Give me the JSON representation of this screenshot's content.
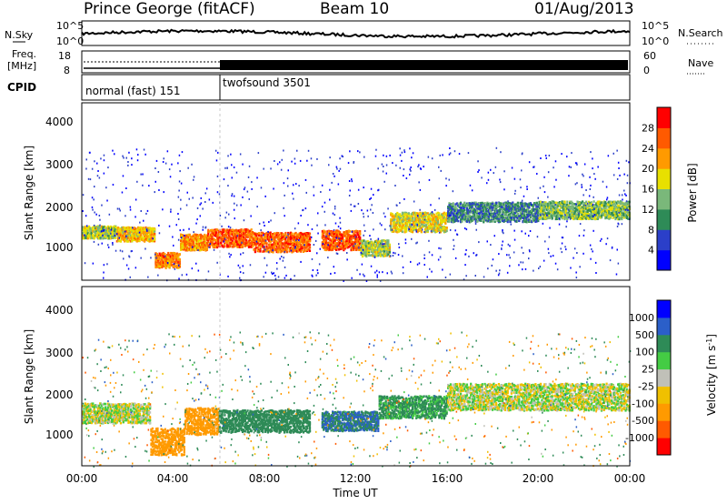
{
  "header": {
    "station": "Prince George (fitACF)",
    "beam": "Beam 10",
    "date": "01/Aug/2013"
  },
  "noise_panel": {
    "left_label": "N.Sky",
    "right_label": "N.Search",
    "left_ticks": [
      "10^5",
      "10^0"
    ],
    "right_ticks": [
      "10^5",
      "10^0"
    ]
  },
  "freq_panel": {
    "left_label_1": "Freq.",
    "left_label_2": "[MHz]",
    "left_ticks": [
      "18",
      "8"
    ],
    "right_label": "Nave",
    "right_ticks": [
      "60",
      "0"
    ]
  },
  "cpid_panel": {
    "label": "CPID",
    "modes": [
      {
        "name": "normal (fast) 151",
        "start_h": 0,
        "end_h": 6
      },
      {
        "name": "twofsound 3501",
        "start_h": 6,
        "end_h": 24
      }
    ]
  },
  "time_axis": {
    "label": "Time UT",
    "ticks": [
      "00:00",
      "04:00",
      "08:00",
      "12:00",
      "16:00",
      "20:00",
      "00:00"
    ]
  },
  "chart_data": [
    {
      "type": "heatmap",
      "title": "",
      "ylabel": "Slant Range [km]",
      "xlabel": "",
      "xlim_hours": [
        0,
        24
      ],
      "ylim": [
        180,
        4600
      ],
      "yticks": [
        "4000",
        "3000",
        "2000",
        "1000"
      ],
      "colorbar": {
        "label": "Power [dB]",
        "ticks": [
          "28",
          "24",
          "20",
          "16",
          "12",
          "8",
          "4"
        ],
        "colors": [
          "#0000ff",
          "#2b3fc9",
          "#2e8b57",
          "#7ab87a",
          "#e8e000",
          "#ff9a00",
          "#ff5a00",
          "#ff0000"
        ]
      },
      "bands": [
        {
          "h0": 0.0,
          "h1": 1.5,
          "r": 1400,
          "w": 140,
          "v": 18
        },
        {
          "h0": 1.5,
          "h1": 3.2,
          "r": 1350,
          "w": 160,
          "v": 22
        },
        {
          "h0": 3.2,
          "h1": 4.3,
          "r": 700,
          "w": 170,
          "v": 26
        },
        {
          "h0": 4.3,
          "h1": 5.5,
          "r": 1150,
          "w": 180,
          "v": 25
        },
        {
          "h0": 5.5,
          "h1": 7.5,
          "r": 1250,
          "w": 200,
          "v": 28
        },
        {
          "h0": 7.5,
          "h1": 10.0,
          "r": 1150,
          "w": 220,
          "v": 27
        },
        {
          "h0": 10.5,
          "h1": 12.2,
          "r": 1200,
          "w": 220,
          "v": 28
        },
        {
          "h0": 12.2,
          "h1": 13.5,
          "r": 1000,
          "w": 180,
          "v": 18
        },
        {
          "h0": 13.5,
          "h1": 16.0,
          "r": 1650,
          "w": 220,
          "v": 20
        },
        {
          "h0": 16.0,
          "h1": 20.0,
          "r": 1900,
          "w": 220,
          "v": 12
        },
        {
          "h0": 20.0,
          "h1": 24.0,
          "r": 1950,
          "w": 200,
          "v": 16
        }
      ]
    },
    {
      "type": "heatmap",
      "title": "",
      "ylabel": "Slant Range [km]",
      "xlabel": "Time UT",
      "xlim_hours": [
        0,
        24
      ],
      "ylim": [
        180,
        4600
      ],
      "yticks": [
        "4000",
        "3000",
        "2000",
        "1000"
      ],
      "colorbar": {
        "label": "Velocity [m s^-1]",
        "ticks": [
          "1000",
          "500",
          "100",
          "25",
          "-25",
          "-100",
          "-500",
          "-1000"
        ],
        "colors": [
          "#ff0000",
          "#ff5a00",
          "#ff9a00",
          "#f0c000",
          "#c0c0b8",
          "#44cc44",
          "#2e8b57",
          "#2b5fc9",
          "#0000ff"
        ]
      },
      "bands": [
        {
          "h0": 0.0,
          "h1": 3.0,
          "r": 1500,
          "w": 220,
          "v": 0
        },
        {
          "h0": 3.0,
          "h1": 4.5,
          "r": 800,
          "w": 300,
          "v": -300
        },
        {
          "h0": 4.5,
          "h1": 6.0,
          "r": 1300,
          "w": 300,
          "v": -400
        },
        {
          "h0": 6.0,
          "h1": 10.0,
          "r": 1300,
          "w": 250,
          "v": 300
        },
        {
          "h0": 10.5,
          "h1": 13.0,
          "r": 1300,
          "w": 220,
          "v": 500
        },
        {
          "h0": 13.0,
          "h1": 16.0,
          "r": 1650,
          "w": 250,
          "v": 150
        },
        {
          "h0": 16.0,
          "h1": 24.0,
          "r": 1900,
          "w": 300,
          "v": 0
        }
      ]
    }
  ]
}
